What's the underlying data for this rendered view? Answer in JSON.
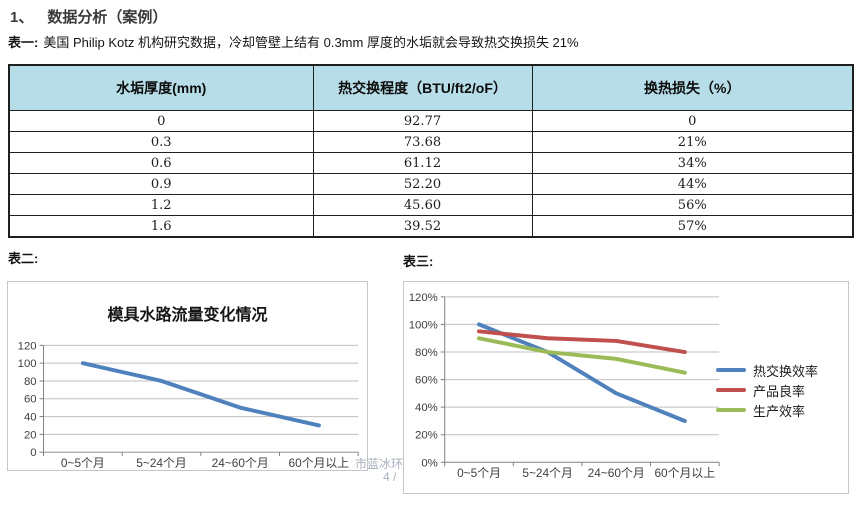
{
  "header": {
    "number": "1、",
    "title": "数据分析（案例）"
  },
  "table1": {
    "label": "表一:",
    "caption": "美国 Philip Kotz 机构研究数据，冷却管壁上结有 0.3mm 厚度的水垢就会导致热交换损失 21%",
    "headers": [
      "水垢厚度(mm)",
      "热交换程度（BTU/ft2/oF）",
      "换热损失（%）"
    ],
    "rows": [
      [
        "0",
        "92.77",
        "0"
      ],
      [
        "0.3",
        "73.68",
        "21%"
      ],
      [
        "0.6",
        "61.12",
        "34%"
      ],
      [
        "0.9",
        "52.20",
        "44%"
      ],
      [
        "1.2",
        "45.60",
        "56%"
      ],
      [
        "1.6",
        "39.52",
        "57%"
      ]
    ],
    "header_bg": "#B7DEE8"
  },
  "sections": {
    "table2_label": "表二:",
    "table3_label": "表三:"
  },
  "watermark": {
    "line1": "市蓝冰环",
    "line2": "4 /"
  },
  "chart_data": [
    {
      "type": "line",
      "title": "模具水路流量变化情况",
      "categories": [
        "0~5个月",
        "5~24个月",
        "24~60个月",
        "60个月以上"
      ],
      "series": [
        {
          "color": "#4F81BD",
          "values": [
            100,
            80,
            50,
            30
          ]
        }
      ],
      "xlabel": "",
      "ylabel": "",
      "ylim": [
        0,
        120
      ],
      "ytick_step": 20,
      "ytick_format": "number",
      "grid": true,
      "legend": "none"
    },
    {
      "type": "line",
      "title": "",
      "categories": [
        "0~5个月",
        "5~24个月",
        "24~60个月",
        "60个月以上"
      ],
      "series": [
        {
          "name": "热交换效率",
          "color": "#4F81BD",
          "values": [
            100,
            80,
            50,
            30
          ]
        },
        {
          "name": "产品良率",
          "color": "#C0504D",
          "values": [
            95,
            90,
            88,
            80
          ]
        },
        {
          "name": "生产效率",
          "color": "#9BBB59",
          "values": [
            90,
            80,
            75,
            65
          ]
        }
      ],
      "xlabel": "",
      "ylabel": "",
      "ylim": [
        0,
        120
      ],
      "ytick_step": 20,
      "ytick_format": "percent",
      "grid": true,
      "legend": "right"
    }
  ],
  "colors": {
    "table_header_bg": "#B7DEE8",
    "grid_line": "#BFBFBF",
    "axis_line": "#808080",
    "series_blue": "#4F81BD",
    "series_red": "#C0504D",
    "series_green": "#9BBB59"
  }
}
